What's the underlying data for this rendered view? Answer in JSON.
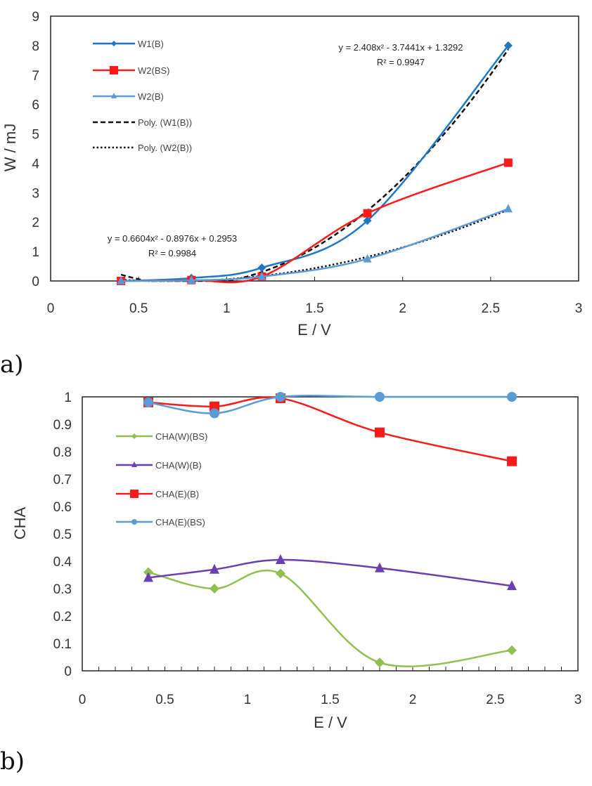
{
  "chart_data": [
    {
      "type": "line",
      "panel_label": "a)",
      "xlabel": "E / V",
      "ylabel": "W / mJ",
      "xlim": [
        0,
        3
      ],
      "ylim": [
        0,
        9
      ],
      "xticks": [
        "0",
        "0.5",
        "1",
        "1.5",
        "2",
        "2.5",
        "3"
      ],
      "yticks": [
        "0",
        "1",
        "2",
        "3",
        "4",
        "5",
        "6",
        "7",
        "8",
        "9"
      ],
      "grid": false,
      "legend": "top-left",
      "x": [
        0.4,
        0.8,
        1.2,
        1.8,
        2.6
      ],
      "series": [
        {
          "name": "W1(B)",
          "values": [
            0.0,
            0.1,
            0.45,
            2.05,
            8.0
          ],
          "color": "#1f77c4",
          "marker": "diamond"
        },
        {
          "name": "W2(BS)",
          "values": [
            0.0,
            0.03,
            0.15,
            2.3,
            4.02
          ],
          "color": "#ff1a1a",
          "marker": "square"
        },
        {
          "name": "W2(B)",
          "values": [
            0.0,
            0.02,
            0.15,
            0.75,
            2.45
          ],
          "color": "#5b9bd5",
          "marker": "triangle"
        }
      ],
      "trendlines": [
        {
          "name": "Poly. (W1(B))",
          "style": "dashed",
          "coefficients": [
            2.408,
            -3.7441,
            1.3292
          ],
          "equation": "y = 2.408x² - 3.7441x + 1.3292",
          "r2": "R² = 0.9947"
        },
        {
          "name": "Poly. (W2(B))",
          "style": "dotted",
          "coefficients": [
            0.6604,
            -0.8976,
            0.2953
          ],
          "equation": "y = 0.6604x² - 0.8976x + 0.2953",
          "r2": "R² = 0.9984"
        }
      ]
    },
    {
      "type": "line",
      "panel_label": "b)",
      "xlabel": "E / V",
      "ylabel": "CHA",
      "xlim": [
        0,
        3
      ],
      "ylim": [
        0,
        1
      ],
      "xticks": [
        "0",
        "0.5",
        "1",
        "1.5",
        "2",
        "2.5",
        "3"
      ],
      "yticks": [
        "0",
        "0.1",
        "0.2",
        "0.3",
        "0.4",
        "0.5",
        "0.6",
        "0.7",
        "0.8",
        "0.9",
        "1"
      ],
      "grid": false,
      "legend": "center-left",
      "x": [
        0.4,
        0.8,
        1.2,
        1.8,
        2.6
      ],
      "series": [
        {
          "name": "CHA(W)(BS)",
          "values": [
            0.36,
            0.3,
            0.355,
            0.03,
            0.075
          ],
          "color": "#92c050",
          "marker": "diamond"
        },
        {
          "name": "CHA(W)(B)",
          "values": [
            0.34,
            0.37,
            0.405,
            0.375,
            0.31
          ],
          "color": "#6a3fb0",
          "marker": "triangle"
        },
        {
          "name": "CHA(E)(B)",
          "values": [
            0.98,
            0.965,
            0.995,
            0.87,
            0.765
          ],
          "color": "#ff1a1a",
          "marker": "square"
        },
        {
          "name": "CHA(E)(BS)",
          "values": [
            0.98,
            0.94,
            1.0,
            1.0,
            1.0
          ],
          "color": "#5b9bd5",
          "marker": "circle"
        }
      ]
    }
  ]
}
